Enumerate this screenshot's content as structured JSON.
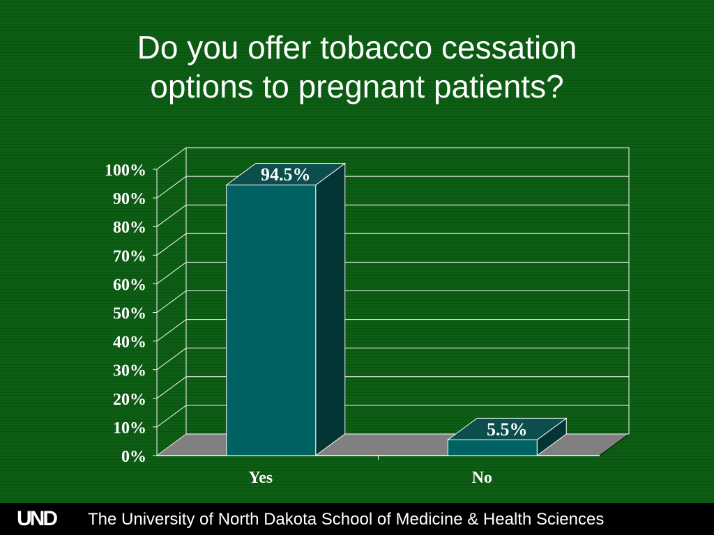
{
  "title": {
    "line1": "Do you offer tobacco cessation",
    "line2": "options to pregnant patients?"
  },
  "chart_data": {
    "type": "bar",
    "categories": [
      "Yes",
      "No"
    ],
    "values": [
      94.5,
      5.5
    ],
    "data_labels": [
      "94.5%",
      "5.5%"
    ],
    "yticks": [
      "0%",
      "10%",
      "20%",
      "30%",
      "40%",
      "50%",
      "60%",
      "70%",
      "80%",
      "90%",
      "100%"
    ],
    "ylim": [
      0,
      100
    ],
    "grid": true,
    "style": "3d",
    "colors": {
      "bar_front": "#006262",
      "bar_top": "#0c4d4d",
      "bar_side": "#033535",
      "floor": "#808080",
      "grid": "#ffffff",
      "label": "#ffffff"
    }
  },
  "footer": {
    "logo": "UND",
    "text": "The University of North Dakota School of Medicine & Health Sciences"
  }
}
